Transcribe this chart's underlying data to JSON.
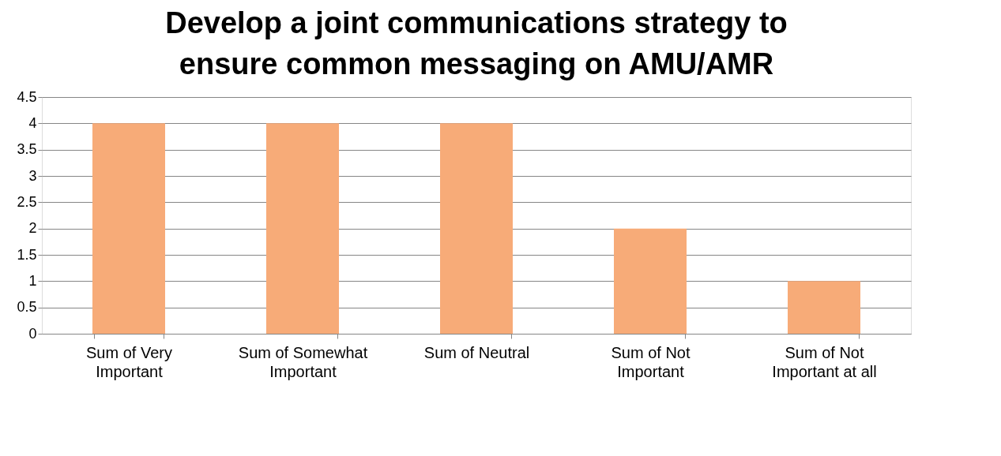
{
  "chart_data": {
    "type": "bar",
    "title": "Develop a joint communications strategy to ensure common messaging on AMU/AMR",
    "categories": [
      "Sum of Very Important",
      "Sum of Somewhat Important",
      "Sum of Neutral",
      "Sum of Not Important",
      "Sum of Not Important at all"
    ],
    "values": [
      4,
      4,
      4,
      2,
      1
    ],
    "color": "#f7ab78",
    "ylim": [
      0,
      4.5
    ],
    "yticks": [
      0,
      0.5,
      1,
      1.5,
      2,
      2.5,
      3,
      3.5,
      4,
      4.5
    ],
    "grid": "y"
  }
}
